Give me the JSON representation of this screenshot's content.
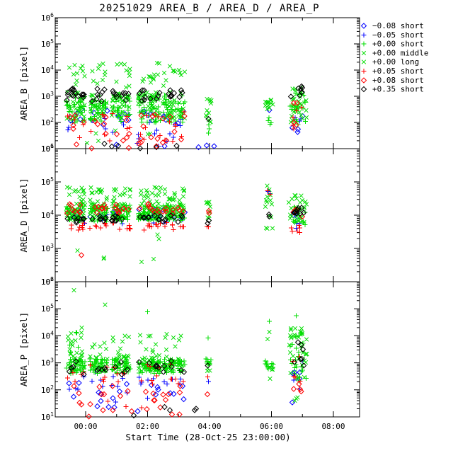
{
  "page": {
    "background": "#ffffff"
  },
  "chart_data": {
    "type": "scatter",
    "title": "20251029 AREA_B / AREA_D / AREA_P",
    "xlabel": "Start Time (28-Oct-25 23:00:00)",
    "x_ticks": {
      "hours": [
        0,
        2,
        4,
        6,
        8
      ],
      "labels": [
        "00:00",
        "02:00",
        "04:00",
        "06:00",
        "08:00"
      ],
      "minor_hours": [
        1,
        3,
        5,
        7
      ]
    },
    "x_range_hours": [
      -0.98,
      8.85
    ],
    "grid": false,
    "legend_position": "top-right",
    "series": [
      {
        "id": "m008_short",
        "label": "−0.08 short",
        "color": "#0000ff",
        "marker": "diamond"
      },
      {
        "id": "m005_short",
        "label": "−0.05 short",
        "color": "#0000ff",
        "marker": "plus"
      },
      {
        "id": "p000_short",
        "label": "+0.00 short",
        "color": "#00dd00",
        "marker": "plus"
      },
      {
        "id": "p000_middle",
        "label": "+0.00 middle",
        "color": "#00dd00",
        "marker": "x"
      },
      {
        "id": "p000_long",
        "label": "+0.00 long",
        "color": "#00dd00",
        "marker": "x"
      },
      {
        "id": "p005_short",
        "label": "+0.05 short",
        "color": "#ff0000",
        "marker": "plus"
      },
      {
        "id": "p008_short",
        "label": "+0.08 short",
        "color": "#ff0000",
        "marker": "diamond"
      },
      {
        "id": "p035_short",
        "label": "+0.35 short",
        "color": "#000000",
        "marker": "diamond"
      }
    ],
    "seed": 20251029,
    "bursts": [
      [
        -0.62,
        -0.02
      ],
      [
        0.14,
        0.7
      ],
      [
        0.84,
        1.44
      ],
      [
        1.7,
        2.42
      ],
      [
        2.5,
        2.92
      ],
      [
        2.98,
        3.2
      ]
    ],
    "panels": [
      {
        "ylabel": "AREA_B [pixel]",
        "ylog_range": [
          1,
          6
        ],
        "per_burst": [
          [
            2,
            2.0,
            3.05,
            30
          ],
          [
            3,
            2.15,
            3.2,
            26
          ],
          [
            4,
            3.3,
            4.3,
            9
          ],
          [
            7,
            2.8,
            3.3,
            8
          ],
          [
            0,
            1.9,
            2.5,
            4
          ],
          [
            1,
            1.4,
            2.4,
            4
          ],
          [
            5,
            1.4,
            2.4,
            4
          ],
          [
            6,
            1.3,
            2.3,
            5
          ]
        ],
        "extra": [
          [
            7,
            -0.6,
            -0.35,
            3.0,
            3.3,
            6
          ],
          [
            4,
            -0.3,
            2.4,
            1.15,
            1.8,
            6
          ],
          [
            6,
            -0.3,
            3.1,
            1.0,
            1.25,
            7
          ],
          [
            7,
            -0.1,
            4.1,
            1.0,
            1.3,
            6
          ],
          [
            0,
            0.3,
            4.6,
            1.05,
            1.35,
            5
          ],
          [
            1,
            0.2,
            2.8,
            1.05,
            1.4,
            4
          ],
          [
            5,
            0.0,
            3.0,
            1.05,
            1.5,
            4
          ],
          [
            3,
            3.88,
            4.06,
            1.9,
            2.9,
            12
          ],
          [
            2,
            3.9,
            4.0,
            1.5,
            2.0,
            3
          ],
          [
            7,
            3.93,
            3.99,
            2.05,
            2.15,
            1
          ],
          [
            3,
            5.8,
            6.08,
            2.5,
            2.95,
            12
          ],
          [
            2,
            5.85,
            6.0,
            1.5,
            2.35,
            4
          ],
          [
            0,
            5.9,
            5.95,
            2.4,
            2.5,
            1
          ],
          [
            3,
            6.55,
            7.15,
            2.0,
            3.2,
            24
          ],
          [
            2,
            6.6,
            7.1,
            1.8,
            3.1,
            18
          ],
          [
            4,
            6.6,
            7.05,
            2.8,
            3.35,
            8
          ],
          [
            7,
            6.6,
            7.0,
            2.9,
            3.4,
            8
          ],
          [
            5,
            6.65,
            7.05,
            1.7,
            2.6,
            5
          ],
          [
            6,
            6.65,
            7.0,
            1.9,
            2.8,
            4
          ],
          [
            0,
            6.65,
            7.05,
            1.6,
            2.6,
            4
          ],
          [
            1,
            6.7,
            6.95,
            1.6,
            2.2,
            3
          ]
        ]
      },
      {
        "ylabel": "AREA_D [pixel]",
        "ylog_range": [
          2,
          6
        ],
        "per_burst": [
          [
            3,
            3.85,
            4.35,
            34
          ],
          [
            2,
            3.8,
            4.3,
            24
          ],
          [
            4,
            4.4,
            4.85,
            13
          ],
          [
            6,
            4.05,
            4.35,
            7
          ],
          [
            5,
            3.55,
            3.8,
            7
          ],
          [
            7,
            3.78,
            4.0,
            7
          ],
          [
            0,
            3.88,
            4.18,
            4
          ],
          [
            1,
            3.72,
            4.05,
            4
          ]
        ],
        "extra": [
          [
            3,
            -0.4,
            2.6,
            2.55,
            3.5,
            7
          ],
          [
            6,
            -0.18,
            -0.12,
            2.78,
            2.84,
            1
          ],
          [
            3,
            3.88,
            4.06,
            3.85,
            4.4,
            9
          ],
          [
            5,
            3.9,
            3.98,
            3.55,
            3.68,
            2
          ],
          [
            7,
            3.92,
            4.0,
            3.75,
            3.85,
            2
          ],
          [
            6,
            3.9,
            4.0,
            4.0,
            4.15,
            2
          ],
          [
            3,
            5.8,
            6.08,
            3.6,
            4.5,
            10
          ],
          [
            4,
            5.85,
            6.0,
            4.55,
            4.9,
            4
          ],
          [
            5,
            5.86,
            5.96,
            4.6,
            4.78,
            2
          ],
          [
            1,
            5.86,
            5.98,
            4.55,
            4.75,
            2
          ],
          [
            7,
            5.88,
            5.96,
            3.95,
            4.05,
            2
          ],
          [
            3,
            6.55,
            7.15,
            3.75,
            4.45,
            22
          ],
          [
            2,
            6.6,
            7.1,
            3.6,
            4.3,
            15
          ],
          [
            4,
            6.6,
            7.05,
            4.4,
            4.72,
            6
          ],
          [
            7,
            6.62,
            7.05,
            4.05,
            4.35,
            9
          ],
          [
            5,
            6.62,
            7.08,
            3.45,
            3.75,
            6
          ],
          [
            6,
            6.7,
            7.0,
            3.9,
            4.3,
            4
          ],
          [
            0,
            6.7,
            7.0,
            3.95,
            4.2,
            3
          ],
          [
            1,
            6.7,
            7.05,
            3.55,
            3.78,
            3
          ]
        ]
      },
      {
        "ylabel": "AREA_P [pixel]",
        "ylog_range": [
          1,
          6
        ],
        "per_burst": [
          [
            2,
            2.6,
            3.15,
            32
          ],
          [
            3,
            2.7,
            3.3,
            22
          ],
          [
            4,
            3.3,
            4.1,
            6
          ],
          [
            7,
            2.55,
            3.15,
            5
          ],
          [
            1,
            2.0,
            2.65,
            4
          ],
          [
            0,
            1.5,
            2.3,
            3
          ],
          [
            5,
            2.2,
            2.95,
            5
          ],
          [
            6,
            1.25,
            2.2,
            4
          ]
        ],
        "extra": [
          [
            4,
            -0.6,
            -0.1,
            3.3,
            4.45,
            8
          ],
          [
            2,
            -0.55,
            -0.2,
            3.3,
            4.3,
            5
          ],
          [
            4,
            -0.38,
            -0.34,
            5.68,
            5.72,
            1
          ],
          [
            4,
            0.62,
            0.66,
            5.12,
            5.18,
            1
          ],
          [
            2,
            2.0,
            2.06,
            4.85,
            4.95,
            1
          ],
          [
            6,
            -0.3,
            3.4,
            1.0,
            1.35,
            6
          ],
          [
            7,
            0.0,
            4.3,
            1.0,
            1.4,
            5
          ],
          [
            0,
            0.3,
            4.3,
            1.1,
            1.4,
            4
          ],
          [
            5,
            0.4,
            2.2,
            1.3,
            1.6,
            3
          ],
          [
            1,
            0.2,
            2.6,
            1.5,
            1.9,
            3
          ],
          [
            2,
            3.88,
            4.05,
            2.8,
            3.15,
            10
          ],
          [
            3,
            3.9,
            4.03,
            2.5,
            3.0,
            5
          ],
          [
            2,
            3.93,
            3.97,
            3.86,
            3.94,
            1
          ],
          [
            1,
            3.92,
            3.98,
            2.25,
            2.35,
            1
          ],
          [
            5,
            3.9,
            3.96,
            2.4,
            2.5,
            1
          ],
          [
            6,
            3.92,
            3.98,
            1.75,
            1.85,
            1
          ],
          [
            7,
            3.92,
            4.0,
            2.9,
            3.0,
            1
          ],
          [
            2,
            5.8,
            6.06,
            2.75,
            3.1,
            10
          ],
          [
            3,
            5.83,
            6.04,
            2.7,
            3.05,
            6
          ],
          [
            2,
            5.9,
            5.95,
            4.5,
            4.6,
            1
          ],
          [
            4,
            5.86,
            5.98,
            3.8,
            4.25,
            2
          ],
          [
            3,
            5.9,
            6.0,
            2.4,
            2.52,
            1
          ],
          [
            3,
            6.55,
            7.15,
            2.4,
            4.3,
            28
          ],
          [
            2,
            6.6,
            7.12,
            2.3,
            4.2,
            22
          ],
          [
            4,
            6.6,
            7.05,
            3.9,
            4.42,
            8
          ],
          [
            2,
            6.75,
            6.85,
            4.7,
            4.8,
            1
          ],
          [
            7,
            6.62,
            7.05,
            2.5,
            3.9,
            7
          ],
          [
            5,
            6.65,
            7.05,
            2.2,
            3.4,
            5
          ],
          [
            6,
            6.7,
            7.0,
            1.9,
            2.6,
            4
          ],
          [
            0,
            6.62,
            7.05,
            1.5,
            2.7,
            5
          ],
          [
            1,
            6.7,
            7.0,
            2.0,
            3.3,
            4
          ],
          [
            3,
            6.75,
            6.95,
            1.55,
            1.8,
            3
          ]
        ]
      }
    ]
  }
}
